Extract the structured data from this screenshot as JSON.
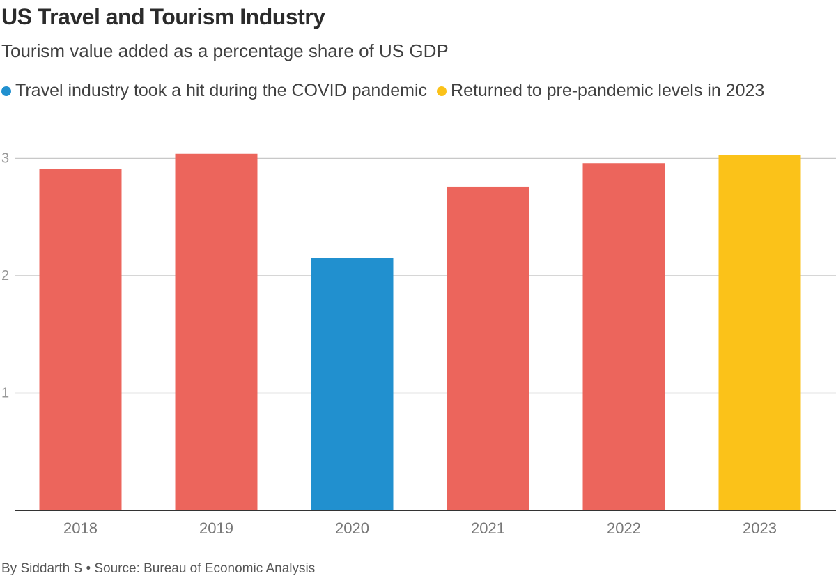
{
  "title": "US Travel and Tourism Industry",
  "subtitle": "Tourism value added as a percentage share of US GDP",
  "legend": [
    {
      "label": "Travel industry took a hit during the COVID pandemic",
      "color": "#2190cf"
    },
    {
      "label": "Returned to pre-pandemic levels in 2023",
      "color": "#fbc219"
    }
  ],
  "footer": "By Siddarth S • Source: Bureau of Economic Analysis",
  "colors": {
    "default_bar": "#ec655c",
    "covid_bar": "#2190cf",
    "recovery_bar": "#fbc219",
    "grid": "#c8c8c8",
    "axis": "#333333",
    "tick_text": "#777777"
  },
  "chart_data": {
    "type": "bar",
    "title": "US Travel and Tourism Industry",
    "subtitle": "Tourism value added as a percentage share of US GDP",
    "categories": [
      "2018",
      "2019",
      "2020",
      "2021",
      "2022",
      "2023"
    ],
    "values": [
      2.91,
      3.04,
      2.15,
      2.76,
      2.96,
      3.03
    ],
    "bar_colors": [
      "#ec655c",
      "#ec655c",
      "#2190cf",
      "#ec655c",
      "#ec655c",
      "#fbc219"
    ],
    "xlabel": "",
    "ylabel": "",
    "ylim": [
      0,
      3
    ],
    "yticks": [
      1,
      2,
      3
    ],
    "grid": true
  }
}
